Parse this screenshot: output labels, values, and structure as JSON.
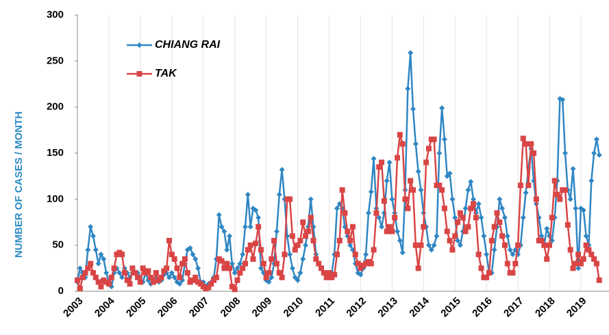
{
  "chart_data": {
    "type": "line",
    "y_label": "NUMBER OF CASES / MONTH",
    "categories": [
      "2003",
      null,
      null,
      null,
      null,
      null,
      null,
      null,
      null,
      null,
      null,
      null,
      "2004",
      null,
      null,
      null,
      null,
      null,
      null,
      null,
      null,
      null,
      null,
      null,
      "2005",
      null,
      null,
      null,
      null,
      null,
      null,
      null,
      null,
      null,
      null,
      null,
      "2006",
      null,
      null,
      null,
      null,
      null,
      null,
      null,
      null,
      null,
      null,
      null,
      "2007",
      null,
      null,
      null,
      null,
      null,
      null,
      null,
      null,
      null,
      null,
      null,
      "2008",
      null,
      null,
      null,
      null,
      null,
      null,
      null,
      null,
      null,
      null,
      null,
      "2009",
      null,
      null,
      null,
      null,
      null,
      null,
      null,
      null,
      null,
      null,
      null,
      "2010",
      null,
      null,
      null,
      null,
      null,
      null,
      null,
      null,
      null,
      null,
      null,
      "2011",
      null,
      null,
      null,
      null,
      null,
      null,
      null,
      null,
      null,
      null,
      null,
      "2012",
      null,
      null,
      null,
      null,
      null,
      null,
      null,
      null,
      null,
      null,
      null,
      "2013",
      null,
      null,
      null,
      null,
      null,
      null,
      null,
      null,
      null,
      null,
      null,
      "2014",
      null,
      null,
      null,
      null,
      null,
      null,
      null,
      null,
      null,
      null,
      null,
      "2015",
      null,
      null,
      null,
      null,
      null,
      null,
      null,
      null,
      null,
      null,
      null,
      "2016",
      null,
      null,
      null,
      null,
      null,
      null,
      null,
      null,
      null,
      null,
      null,
      "2017",
      null,
      null,
      null,
      null,
      null,
      null,
      null,
      null,
      null,
      null,
      null,
      "2018",
      null,
      null,
      null,
      null,
      null,
      null,
      null,
      null,
      null,
      null,
      null,
      "2019",
      null,
      null,
      null,
      null,
      null,
      null,
      null
    ],
    "series": [
      {
        "name": "CHIANG RAI",
        "color": "#2f86c3",
        "marker": "diamond",
        "values": [
          10,
          25,
          20,
          15,
          45,
          70,
          60,
          45,
          30,
          40,
          35,
          20,
          10,
          5,
          20,
          25,
          20,
          15,
          25,
          20,
          15,
          20,
          20,
          20,
          15,
          10,
          20,
          12,
          8,
          10,
          15,
          10,
          12,
          18,
          20,
          15,
          20,
          15,
          10,
          8,
          12,
          30,
          45,
          47,
          40,
          35,
          25,
          10,
          10,
          5,
          8,
          10,
          15,
          35,
          83,
          70,
          65,
          45,
          60,
          30,
          20,
          25,
          30,
          40,
          70,
          105,
          70,
          90,
          88,
          80,
          25,
          20,
          12,
          10,
          15,
          30,
          65,
          105,
          132,
          100,
          60,
          40,
          25,
          15,
          12,
          20,
          35,
          50,
          70,
          100,
          70,
          40,
          30,
          25,
          20,
          15,
          15,
          20,
          40,
          90,
          95,
          90,
          70,
          60,
          50,
          45,
          30,
          20,
          18,
          25,
          40,
          85,
          108,
          144,
          90,
          80,
          70,
          85,
          120,
          140,
          100,
          85,
          65,
          55,
          42,
          110,
          220,
          259,
          198,
          160,
          130,
          110,
          85,
          70,
          50,
          45,
          50,
          60,
          150,
          199,
          165,
          125,
          128,
          100,
          80,
          55,
          50,
          65,
          90,
          110,
          119,
          100,
          85,
          95,
          80,
          60,
          40,
          20,
          20,
          45,
          70,
          100,
          90,
          80,
          60,
          45,
          40,
          45,
          40,
          50,
          80,
          107,
          134,
          155,
          120,
          95,
          80,
          60,
          50,
          68,
          60,
          55,
          80,
          120,
          209,
          208,
          150,
          110,
          100,
          133,
          90,
          25,
          90,
          88,
          60,
          50,
          120,
          150,
          165,
          148
        ]
      },
      {
        "name": "TAK",
        "color": "#d94545",
        "marker": "square",
        "values": [
          12,
          3,
          15,
          20,
          25,
          30,
          20,
          15,
          10,
          5,
          12,
          10,
          8,
          15,
          25,
          40,
          42,
          40,
          20,
          12,
          8,
          25,
          20,
          15,
          10,
          25,
          20,
          22,
          15,
          10,
          20,
          12,
          15,
          22,
          25,
          55,
          40,
          35,
          25,
          15,
          30,
          35,
          20,
          10,
          12,
          15,
          10,
          8,
          5,
          3,
          4,
          8,
          12,
          15,
          35,
          33,
          25,
          30,
          25,
          5,
          2,
          12,
          20,
          25,
          30,
          45,
          50,
          35,
          52,
          70,
          45,
          30,
          15,
          20,
          35,
          55,
          30,
          20,
          15,
          40,
          100,
          100,
          60,
          45,
          50,
          55,
          75,
          60,
          65,
          80,
          55,
          35,
          30,
          25,
          20,
          15,
          20,
          15,
          18,
          40,
          55,
          110,
          85,
          65,
          55,
          70,
          40,
          30,
          25,
          28,
          30,
          32,
          30,
          45,
          85,
          135,
          140,
          98,
          65,
          70,
          65,
          80,
          145,
          170,
          160,
          100,
          90,
          120,
          110,
          50,
          25,
          50,
          70,
          140,
          155,
          165,
          165,
          115,
          115,
          110,
          90,
          65,
          55,
          45,
          60,
          75,
          85,
          80,
          65,
          70,
          90,
          95,
          80,
          40,
          25,
          15,
          15,
          20,
          55,
          70,
          85,
          75,
          60,
          50,
          30,
          20,
          20,
          30,
          50,
          115,
          166,
          160,
          115,
          160,
          150,
          100,
          55,
          55,
          50,
          35,
          50,
          80,
          120,
          105,
          100,
          110,
          110,
          72,
          45,
          25,
          30,
          40,
          30,
          35,
          50,
          45,
          40,
          35,
          30,
          12
        ]
      }
    ],
    "ylim": [
      0,
      300
    ],
    "yticks": [
      0,
      50,
      100,
      150,
      200,
      250,
      300
    ],
    "xgrid": true
  }
}
